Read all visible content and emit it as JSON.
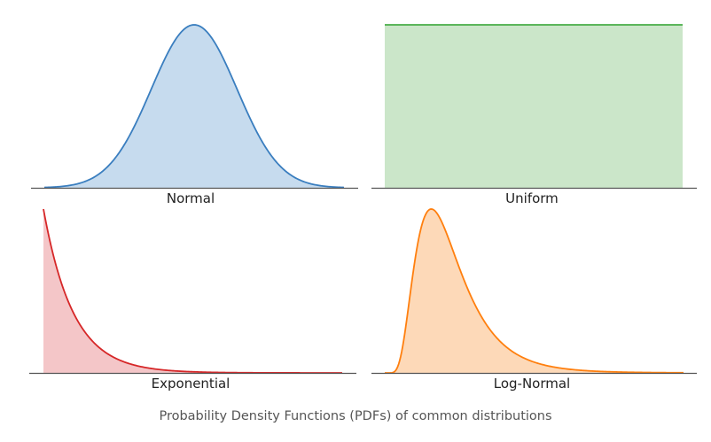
{
  "caption": "Probability Density Functions (PDFs) of common distributions",
  "chart_data": [
    {
      "type": "area",
      "label": "Normal",
      "function": "normal",
      "params": {
        "mean": 0,
        "sd": 1
      },
      "x_domain": [
        -3.5,
        3.5
      ],
      "color": "#3a7ebf",
      "fill": "#c6dbee"
    },
    {
      "type": "area",
      "label": "Uniform",
      "function": "uniform",
      "params": {
        "a": 0,
        "b": 1
      },
      "x_domain": [
        0,
        1
      ],
      "color": "#2ca02c",
      "fill": "#cbe6c9"
    },
    {
      "type": "area",
      "label": "Exponential",
      "function": "exponential",
      "params": {
        "rate": 1
      },
      "x_domain": [
        0,
        10
      ],
      "color": "#d62728",
      "fill": "#f4c6c8"
    },
    {
      "type": "area",
      "label": "Log-Normal",
      "function": "lognormal",
      "params": {
        "mu": 0,
        "sigma": 0.5
      },
      "x_domain": [
        0,
        5
      ],
      "color": "#ff7f0e",
      "fill": "#fdd9b8"
    }
  ]
}
